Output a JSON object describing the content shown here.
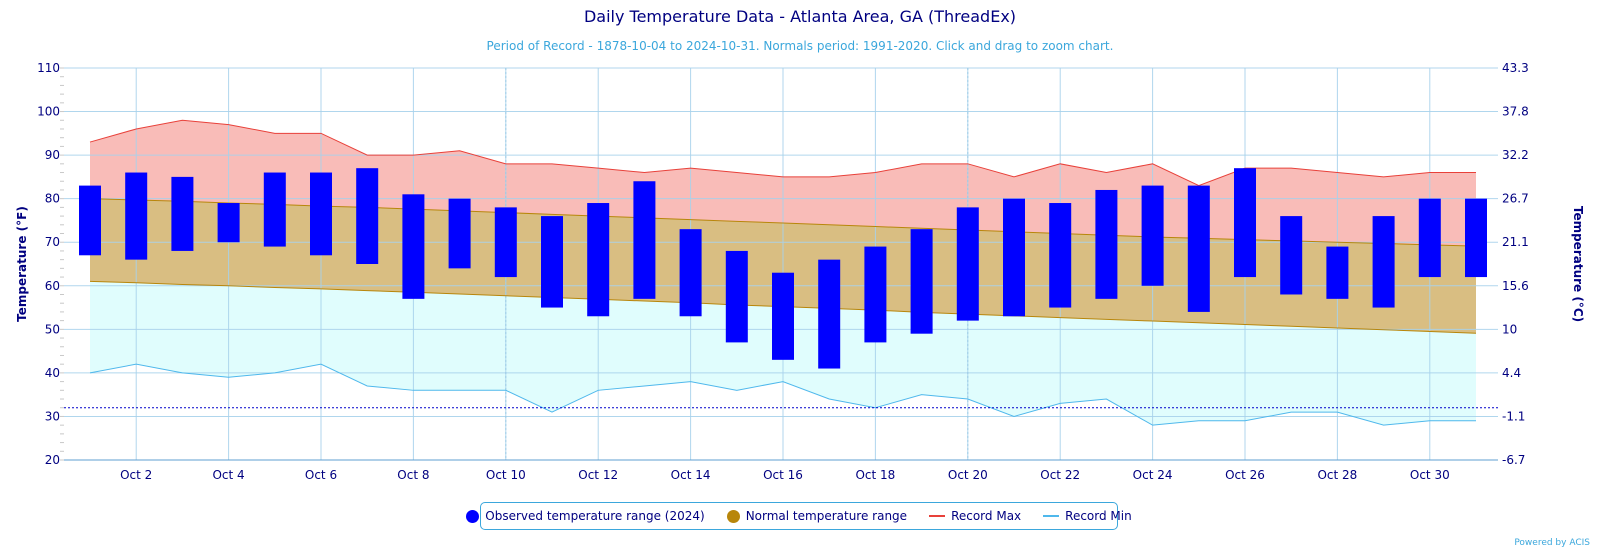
{
  "colors": {
    "observed": "#0000ff",
    "normal_fill": "#d9be82",
    "normal_line": "#b8860b",
    "record_max_fill": "#f9bcb8",
    "record_max_line": "#e8413a",
    "record_min_fill": "#e0fdfd",
    "record_min_line": "#4fb8ec",
    "freeze_line": "#0000cc",
    "grid": "#a8d2ec",
    "axis_text": "#000080"
  },
  "legend": {
    "observed": "Observed temperature range (2024)",
    "normal": "Normal temperature range",
    "record_max": "Record Max",
    "record_min": "Record Min"
  },
  "credit": "Powered by ACIS",
  "chart_data": {
    "type": "bar",
    "title": "Daily Temperature Data - Atlanta Area, GA (ThreadEx)",
    "subtitle": "Period of Record - 1878-10-04 to 2024-10-31. Normals period: 1991-2020. Click and drag to zoom chart.",
    "ylabel": "Temperature (°F)",
    "ylabel_right": "Temperature (°C)",
    "ylim": [
      20,
      110
    ],
    "yticks": [
      20,
      30,
      40,
      50,
      60,
      70,
      80,
      90,
      100,
      110
    ],
    "yticks_right": [
      "-6.7",
      "-1.1",
      "4.4",
      "10",
      "15.6",
      "21.1",
      "26.7",
      "32.2",
      "37.8",
      "43.3"
    ],
    "xlim": [
      1,
      31
    ],
    "x_tick_days": [
      2,
      4,
      6,
      8,
      10,
      12,
      14,
      16,
      18,
      20,
      22,
      24,
      26,
      28,
      30
    ],
    "x_tick_labels": [
      "Oct 2",
      "Oct 4",
      "Oct 6",
      "Oct 8",
      "Oct 10",
      "Oct 12",
      "Oct 14",
      "Oct 16",
      "Oct 18",
      "Oct 20",
      "Oct 22",
      "Oct 24",
      "Oct 26",
      "Oct 28",
      "Oct 30"
    ],
    "freezing_line": 32,
    "grid": true,
    "legend_position": "bottom",
    "days": [
      1,
      2,
      3,
      4,
      5,
      6,
      7,
      8,
      9,
      10,
      11,
      12,
      13,
      14,
      15,
      16,
      17,
      18,
      19,
      20,
      21,
      22,
      23,
      24,
      25,
      26,
      27,
      28,
      29,
      30,
      31
    ],
    "series": [
      {
        "name": "Observed temperature range (2024)",
        "low": [
          67,
          66,
          68,
          70,
          69,
          67,
          65,
          57,
          64,
          62,
          55,
          53,
          57,
          53,
          47,
          43,
          41,
          47,
          49,
          52,
          53,
          55,
          57,
          60,
          54,
          62,
          58,
          57,
          55,
          62,
          62
        ],
        "high": [
          83,
          86,
          85,
          79,
          86,
          86,
          87,
          81,
          80,
          78,
          76,
          79,
          84,
          73,
          68,
          63,
          66,
          69,
          73,
          78,
          80,
          79,
          82,
          83,
          83,
          87,
          76,
          69,
          76,
          80,
          80
        ]
      },
      {
        "name": "Normal temperature range",
        "low": [
          61,
          60.7,
          60.3,
          60,
          59.6,
          59.3,
          58.9,
          58.5,
          58.1,
          57.7,
          57.3,
          56.9,
          56.5,
          56.1,
          55.6,
          55.2,
          54.8,
          54.4,
          53.9,
          53.5,
          53.1,
          52.7,
          52.3,
          51.9,
          51.5,
          51.1,
          50.7,
          50.3,
          49.9,
          49.5,
          49.1
        ],
        "high": [
          80,
          79.7,
          79.4,
          79.0,
          78.7,
          78.3,
          78.0,
          77.6,
          77.2,
          76.8,
          76.4,
          76.0,
          75.6,
          75.2,
          74.8,
          74.4,
          74.0,
          73.6,
          73.2,
          72.8,
          72.4,
          72.0,
          71.6,
          71.2,
          70.9,
          70.6,
          70.3,
          70.0,
          69.7,
          69.4,
          69.1
        ]
      },
      {
        "name": "Record Max",
        "values": [
          93,
          96,
          98,
          97,
          95,
          95,
          90,
          90,
          91,
          88,
          88,
          87,
          86,
          87,
          86,
          85,
          85,
          86,
          88,
          88,
          85,
          88,
          86,
          88,
          83,
          87,
          87,
          86,
          85,
          86,
          86
        ]
      },
      {
        "name": "Record Min",
        "values": [
          40,
          42,
          40,
          39,
          40,
          42,
          37,
          36,
          36,
          36,
          31,
          36,
          37,
          38,
          36,
          38,
          34,
          32,
          35,
          34,
          30,
          33,
          34,
          28,
          29,
          29,
          31,
          31,
          28,
          29,
          29
        ]
      }
    ]
  }
}
